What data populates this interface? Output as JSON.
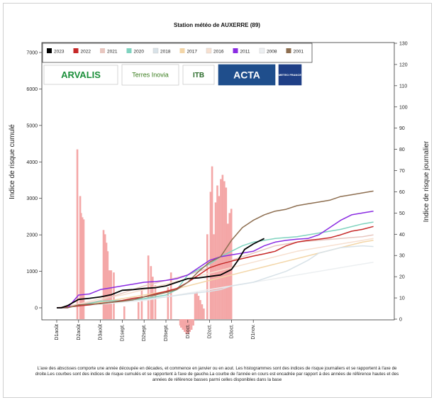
{
  "chart_data": {
    "type": "line",
    "title": "Station météo de AUXERRE (89)",
    "ylabel_left": "Indice de risque cumulé",
    "ylabel_right": "Indice de risque journalier",
    "ylim_left": [
      0,
      7000
    ],
    "ylim_right": [
      0,
      130
    ],
    "yticks_left": [
      "0",
      "1000",
      "2000",
      "3000",
      "4000",
      "5000",
      "6000",
      "7000"
    ],
    "yticks_right": [
      "0",
      "10",
      "20",
      "30",
      "40",
      "50",
      "60",
      "70",
      "80",
      "90",
      "100",
      "110",
      "120",
      "130"
    ],
    "x_categories": [
      "D1août",
      "D2août",
      "D3août",
      "D1sept.",
      "D2sept.",
      "D3sept.",
      "D1oct.",
      "D2oct.",
      "D3oct.",
      "D1nov."
    ],
    "legend_position": "top-left",
    "logos": [
      "ARVALIS",
      "Terres Inovia",
      "ITB",
      "ACTA",
      "METEO FRANCE"
    ],
    "series": [
      {
        "name": "2023",
        "color": "#000000",
        "x": [
          0,
          0.2,
          0.5,
          1,
          1.5,
          2,
          2.5,
          3,
          3.5,
          4,
          4.5,
          5,
          5.5,
          6,
          6.5,
          7,
          7.5,
          8,
          8.3,
          8.6,
          9,
          9.5
        ],
        "y": [
          0,
          0,
          60,
          230,
          260,
          300,
          360,
          480,
          500,
          530,
          550,
          600,
          700,
          800,
          820,
          860,
          900,
          1050,
          1300,
          1600,
          1750,
          1900
        ]
      },
      {
        "name": "2022",
        "color": "#c62828",
        "x": [
          0,
          0.2,
          0.5,
          1,
          1.5,
          2,
          2.5,
          3,
          3.5,
          4,
          4.5,
          5,
          5.5,
          6,
          6.5,
          7,
          7.5,
          8,
          8.5,
          9,
          9.5,
          10,
          10.5,
          11,
          11.5,
          12,
          12.5,
          13,
          13.5,
          14,
          14.5
        ],
        "y": [
          0,
          0,
          20,
          50,
          80,
          120,
          150,
          200,
          260,
          300,
          380,
          450,
          530,
          700,
          900,
          1100,
          1200,
          1280,
          1350,
          1420,
          1480,
          1550,
          1700,
          1800,
          1850,
          1880,
          1920,
          2000,
          2100,
          2150,
          2230
        ]
      },
      {
        "name": "2021",
        "color": "#e8c7c0",
        "x": [
          0,
          1,
          2,
          3,
          4,
          5,
          6,
          7,
          8,
          9,
          10,
          11,
          12,
          13,
          14,
          14.5
        ],
        "y": [
          0,
          80,
          200,
          400,
          600,
          750,
          900,
          1100,
          1300,
          1500,
          1700,
          1800,
          1850,
          1900,
          1950,
          2000
        ]
      },
      {
        "name": "2020",
        "color": "#7fd3bf",
        "x": [
          0,
          0.3,
          1,
          1.5,
          2,
          3,
          4,
          5,
          5.5,
          6,
          6.5,
          7,
          7.5,
          8,
          8.5,
          9,
          10,
          11,
          12,
          13,
          14,
          14.5
        ],
        "y": [
          0,
          0,
          50,
          120,
          180,
          200,
          250,
          350,
          500,
          900,
          1050,
          1200,
          1400,
          1550,
          1700,
          1800,
          1900,
          1950,
          2050,
          2150,
          2300,
          2350
        ]
      },
      {
        "name": "2018",
        "color": "#d8e2e8",
        "x": [
          0,
          1,
          2,
          3,
          4,
          5,
          6,
          7,
          7.5,
          8,
          9,
          10,
          10.5,
          11,
          11.5,
          12,
          13,
          14,
          14.5
        ],
        "y": [
          0,
          50,
          120,
          180,
          230,
          300,
          380,
          450,
          500,
          600,
          700,
          900,
          1000,
          1150,
          1300,
          1500,
          1650,
          1700,
          1680
        ]
      },
      {
        "name": "2017",
        "color": "#f3d6a8",
        "x": [
          0,
          1,
          2,
          3,
          4,
          5,
          6,
          7,
          8,
          9,
          10,
          11,
          12,
          13,
          14,
          14.5
        ],
        "y": [
          0,
          60,
          150,
          250,
          350,
          450,
          600,
          750,
          900,
          1050,
          1200,
          1350,
          1500,
          1650,
          1800,
          1850
        ]
      },
      {
        "name": "2016",
        "color": "#f7e0d0",
        "x": [
          0,
          1,
          2,
          3,
          4,
          5,
          6,
          7,
          8,
          9,
          10,
          11,
          12,
          13,
          14,
          14.5
        ],
        "y": [
          0,
          100,
          250,
          350,
          500,
          650,
          800,
          950,
          1100,
          1250,
          1400,
          1550,
          1650,
          1750,
          1850,
          1900
        ]
      },
      {
        "name": "2011",
        "color": "#8a2be2",
        "x": [
          0,
          0.5,
          1,
          1.5,
          2,
          2.5,
          3,
          3.5,
          4,
          4.5,
          5,
          5.5,
          6,
          6.5,
          7,
          7.5,
          8,
          8.5,
          9,
          9.5,
          10,
          10.5,
          11,
          11.5,
          12,
          12.5,
          13,
          13.5,
          14,
          14.5
        ],
        "y": [
          0,
          0,
          350,
          380,
          500,
          550,
          600,
          650,
          700,
          720,
          750,
          800,
          900,
          1100,
          1300,
          1400,
          1450,
          1500,
          1550,
          1700,
          1800,
          1850,
          1880,
          1900,
          2000,
          2200,
          2400,
          2550,
          2600,
          2650
        ]
      },
      {
        "name": "2008",
        "color": "#eceff1",
        "x": [
          0,
          1,
          2,
          3,
          4,
          5,
          6,
          7,
          8,
          9,
          10,
          11,
          12,
          13,
          14,
          14.5
        ],
        "y": [
          0,
          50,
          100,
          150,
          200,
          300,
          400,
          500,
          600,
          700,
          800,
          900,
          1000,
          1100,
          1200,
          1250
        ]
      },
      {
        "name": "2001",
        "color": "#8d6e50",
        "x": [
          0,
          0.5,
          1,
          1.5,
          2,
          2.5,
          3,
          3.5,
          4,
          4.5,
          5,
          5.5,
          6,
          6.5,
          7,
          7.5,
          8,
          8.5,
          9,
          9.5,
          10,
          10.5,
          11,
          11.5,
          12,
          12.5,
          13,
          13.5,
          14,
          14.5
        ],
        "y": [
          0,
          0,
          80,
          100,
          110,
          150,
          180,
          220,
          300,
          350,
          420,
          500,
          700,
          1000,
          1250,
          1400,
          1850,
          2200,
          2400,
          2550,
          2650,
          2700,
          2800,
          2850,
          2900,
          2950,
          3050,
          3100,
          3150,
          3200
        ]
      }
    ],
    "bars_right_axis": {
      "color": "#f4a7a7",
      "x": [
        0.95,
        1.08,
        1.12,
        1.18,
        1.24,
        2.15,
        2.22,
        2.28,
        2.34,
        2.42,
        2.5,
        2.62,
        3.1,
        3.75,
        3.9,
        4.2,
        4.32,
        4.4,
        4.52,
        5.1,
        5.24,
        5.66,
        5.7,
        5.78,
        5.86,
        5.94,
        6.02,
        6.1,
        6.18,
        6.26,
        6.34,
        6.42,
        6.5,
        6.58,
        6.66,
        6.74,
        6.9,
        7.05,
        7.12,
        7.2,
        7.28,
        7.36,
        7.44,
        7.52,
        7.6,
        7.68,
        7.76,
        7.84,
        7.92,
        8.0
      ],
      "y": [
        80,
        58,
        50,
        48,
        47,
        42,
        40,
        36,
        32,
        23,
        23,
        22,
        6,
        8,
        14,
        30,
        25,
        20,
        16,
        15,
        22,
        -3,
        -4,
        -5,
        -6,
        -7,
        -7,
        -6,
        -5,
        -3,
        12,
        13,
        11,
        9,
        7,
        5,
        40,
        60,
        72,
        40,
        55,
        63,
        58,
        66,
        68,
        65,
        62,
        45,
        50,
        52
      ]
    }
  },
  "caption": "L'axe des abscisses comporte une année découpée en décades, et commence en janvier  ou en aout. Les histogrammes sont des indices de risque journaliers et se rapportent à l'axe de droite.Les courbes sont des indices de risque cumulés et se rapportent à l'axe de gauche.La courbe de l'année en cours est encadrée par rapport à des années de référence hautes et des années de référence basses parmi celles disponibles dans la base"
}
